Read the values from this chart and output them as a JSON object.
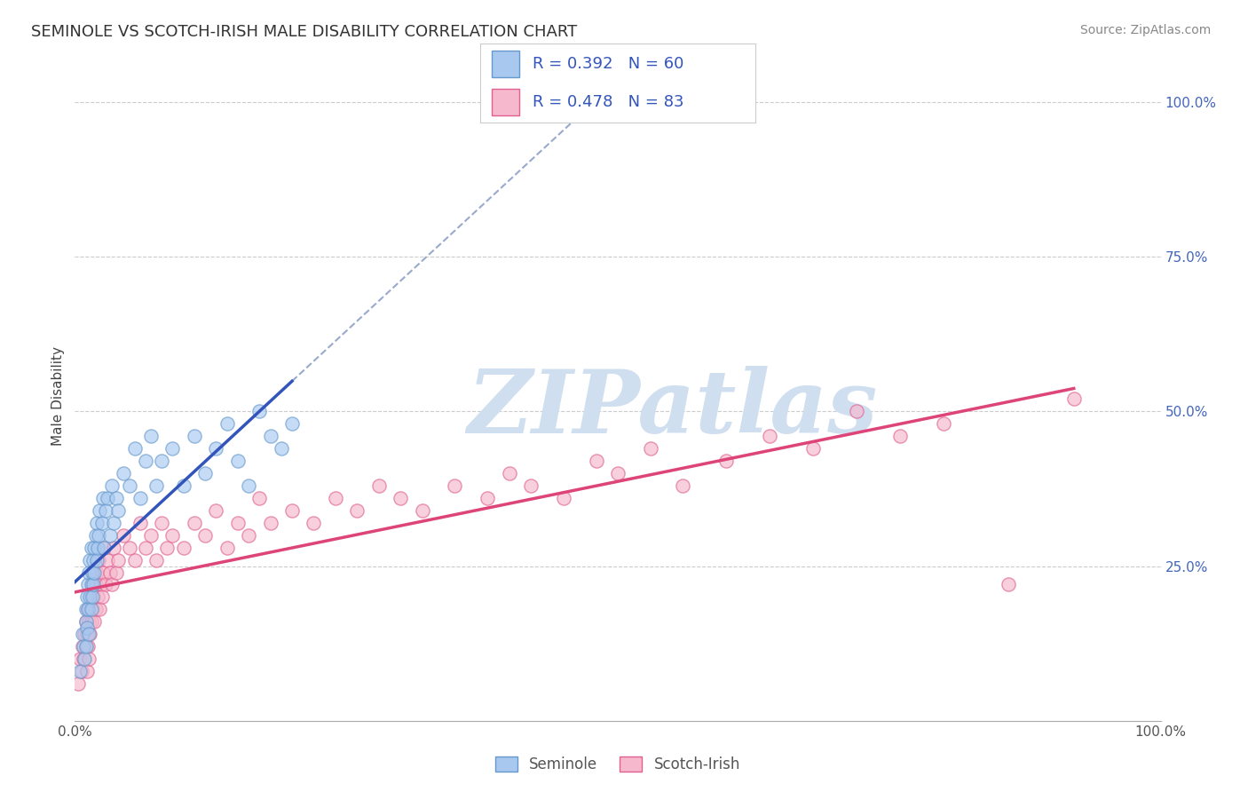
{
  "title": "SEMINOLE VS SCOTCH-IRISH MALE DISABILITY CORRELATION CHART",
  "source": "Source: ZipAtlas.com",
  "ylabel": "Male Disability",
  "ytick_vals": [
    0.0,
    0.25,
    0.5,
    0.75,
    1.0
  ],
  "ytick_labels": [
    "",
    "25.0%",
    "50.0%",
    "75.0%",
    "100.0%"
  ],
  "xlim": [
    0,
    1
  ],
  "ylim": [
    0,
    1.05
  ],
  "seminole_color": "#a8c8f0",
  "scotch_irish_color": "#f5b8cc",
  "seminole_edge_color": "#6699cc",
  "scotch_irish_edge_color": "#e06090",
  "trend_blue": "#3355bb",
  "trend_pink": "#dd4477",
  "trend_gray_dashed": "#99aacc",
  "watermark_color": "#d0dff0",
  "background_color": "#ffffff",
  "grid_color": "#cccccc",
  "legend_text_color": "#3355bb",
  "seminole_x": [
    0.005,
    0.007,
    0.008,
    0.009,
    0.01,
    0.01,
    0.01,
    0.011,
    0.011,
    0.012,
    0.012,
    0.013,
    0.013,
    0.014,
    0.014,
    0.015,
    0.015,
    0.015,
    0.016,
    0.016,
    0.017,
    0.017,
    0.018,
    0.018,
    0.019,
    0.02,
    0.02,
    0.021,
    0.022,
    0.023,
    0.025,
    0.026,
    0.027,
    0.028,
    0.03,
    0.032,
    0.034,
    0.036,
    0.038,
    0.04,
    0.045,
    0.05,
    0.055,
    0.06,
    0.065,
    0.07,
    0.075,
    0.08,
    0.09,
    0.1,
    0.11,
    0.12,
    0.13,
    0.14,
    0.15,
    0.16,
    0.17,
    0.18,
    0.19,
    0.2
  ],
  "seminole_y": [
    0.08,
    0.14,
    0.12,
    0.1,
    0.16,
    0.18,
    0.12,
    0.2,
    0.15,
    0.22,
    0.18,
    0.24,
    0.14,
    0.2,
    0.26,
    0.22,
    0.18,
    0.28,
    0.24,
    0.2,
    0.26,
    0.22,
    0.28,
    0.24,
    0.3,
    0.26,
    0.32,
    0.28,
    0.3,
    0.34,
    0.32,
    0.36,
    0.28,
    0.34,
    0.36,
    0.3,
    0.38,
    0.32,
    0.36,
    0.34,
    0.4,
    0.38,
    0.44,
    0.36,
    0.42,
    0.46,
    0.38,
    0.42,
    0.44,
    0.38,
    0.46,
    0.4,
    0.44,
    0.48,
    0.42,
    0.38,
    0.5,
    0.46,
    0.44,
    0.48
  ],
  "scotch_x": [
    0.003,
    0.005,
    0.006,
    0.007,
    0.008,
    0.009,
    0.01,
    0.01,
    0.011,
    0.011,
    0.012,
    0.012,
    0.013,
    0.013,
    0.014,
    0.014,
    0.015,
    0.015,
    0.016,
    0.016,
    0.017,
    0.017,
    0.018,
    0.019,
    0.019,
    0.02,
    0.021,
    0.022,
    0.023,
    0.024,
    0.025,
    0.026,
    0.027,
    0.028,
    0.03,
    0.032,
    0.034,
    0.036,
    0.038,
    0.04,
    0.045,
    0.05,
    0.055,
    0.06,
    0.065,
    0.07,
    0.075,
    0.08,
    0.085,
    0.09,
    0.1,
    0.11,
    0.12,
    0.13,
    0.14,
    0.15,
    0.16,
    0.17,
    0.18,
    0.2,
    0.22,
    0.24,
    0.26,
    0.28,
    0.3,
    0.32,
    0.35,
    0.38,
    0.4,
    0.42,
    0.45,
    0.48,
    0.5,
    0.53,
    0.56,
    0.6,
    0.64,
    0.68,
    0.72,
    0.76,
    0.8,
    0.86,
    0.92
  ],
  "scotch_y": [
    0.06,
    0.1,
    0.08,
    0.12,
    0.1,
    0.14,
    0.12,
    0.16,
    0.08,
    0.14,
    0.18,
    0.12,
    0.16,
    0.1,
    0.18,
    0.14,
    0.2,
    0.16,
    0.22,
    0.18,
    0.2,
    0.24,
    0.16,
    0.22,
    0.18,
    0.24,
    0.2,
    0.26,
    0.18,
    0.22,
    0.2,
    0.24,
    0.28,
    0.22,
    0.26,
    0.24,
    0.22,
    0.28,
    0.24,
    0.26,
    0.3,
    0.28,
    0.26,
    0.32,
    0.28,
    0.3,
    0.26,
    0.32,
    0.28,
    0.3,
    0.28,
    0.32,
    0.3,
    0.34,
    0.28,
    0.32,
    0.3,
    0.36,
    0.32,
    0.34,
    0.32,
    0.36,
    0.34,
    0.38,
    0.36,
    0.34,
    0.38,
    0.36,
    0.4,
    0.38,
    0.36,
    0.42,
    0.4,
    0.44,
    0.38,
    0.42,
    0.46,
    0.44,
    0.5,
    0.46,
    0.48,
    0.22,
    0.52
  ]
}
